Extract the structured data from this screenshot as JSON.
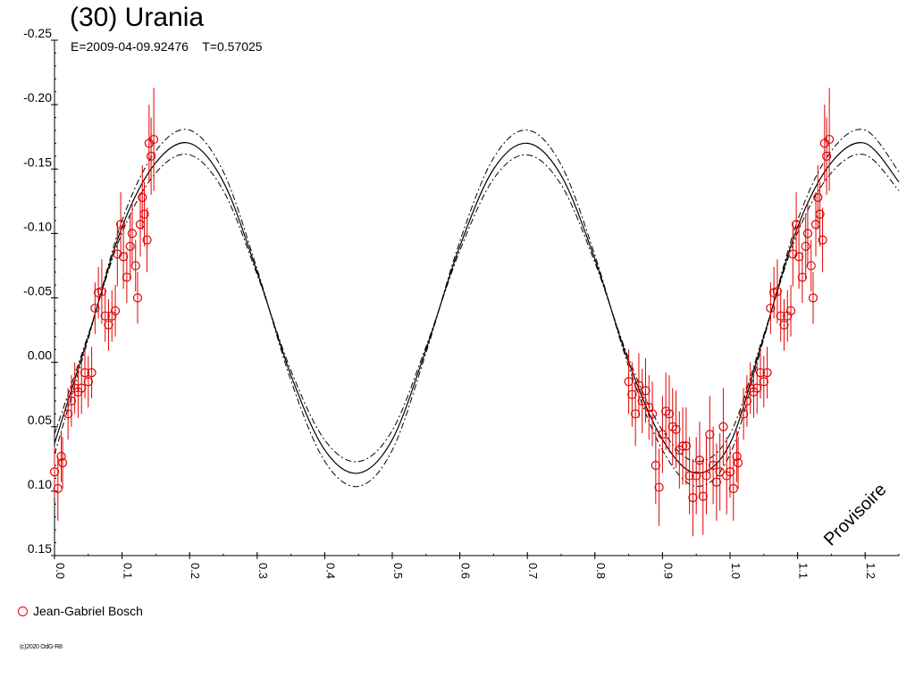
{
  "header": {
    "title": "(30) Urania",
    "subtitle": "E=2009-04-09.92476    T=0.57025"
  },
  "legend": {
    "observer": "Jean-Gabriel Bosch",
    "marker_color": "#e00000"
  },
  "footer": {
    "copyright": "(c)2020 OdG-R8"
  },
  "watermark": "Provisoire",
  "chart_data": {
    "type": "scatter",
    "xlim": [
      0.0,
      1.25
    ],
    "ylim": [
      -0.25,
      0.15
    ],
    "y_inverted": true,
    "x_ticks": [
      "0.0",
      "0.1",
      "0.2",
      "0.3",
      "0.4",
      "0.5",
      "0.6",
      "0.7",
      "0.8",
      "0.9",
      "1.0",
      "1.1",
      "1.2"
    ],
    "y_ticks": [
      "-0.25",
      "-0.20",
      "-0.15",
      "-0.10",
      "-0.05",
      "0.00",
      "0.05",
      "0.10",
      "0.15"
    ],
    "grid": false,
    "legend_placement": "bottom-left",
    "fit_curve": {
      "style": "solid",
      "points": [
        [
          0.0,
          0.063
        ],
        [
          0.05,
          -0.02
        ],
        [
          0.1,
          -0.105
        ],
        [
          0.15,
          -0.155
        ],
        [
          0.2,
          -0.17
        ],
        [
          0.25,
          -0.14
        ],
        [
          0.3,
          -0.07
        ],
        [
          0.35,
          0.01
        ],
        [
          0.4,
          0.068
        ],
        [
          0.45,
          0.086
        ],
        [
          0.5,
          0.06
        ],
        [
          0.55,
          -0.01
        ],
        [
          0.6,
          -0.09
        ],
        [
          0.65,
          -0.15
        ],
        [
          0.7,
          -0.17
        ],
        [
          0.75,
          -0.145
        ],
        [
          0.8,
          -0.08
        ],
        [
          0.85,
          0.0
        ],
        [
          0.9,
          0.06
        ],
        [
          0.95,
          0.086
        ],
        [
          1.0,
          0.063
        ],
        [
          1.05,
          -0.02
        ],
        [
          1.1,
          -0.105
        ],
        [
          1.15,
          -0.155
        ],
        [
          1.2,
          -0.17
        ],
        [
          1.25,
          -0.14
        ]
      ]
    },
    "envelope_offset": 0.01,
    "series": [
      {
        "name": "Jean-Gabriel Bosch",
        "color": "#e00000",
        "points": [
          {
            "x": 0.0,
            "y": 0.085,
            "err": 0.02
          },
          {
            "x": 0.005,
            "y": 0.098,
            "err": 0.025
          },
          {
            "x": 0.01,
            "y": 0.073,
            "err": 0.02
          },
          {
            "x": 0.012,
            "y": 0.078,
            "err": 0.02
          },
          {
            "x": 0.02,
            "y": 0.04,
            "err": 0.02
          },
          {
            "x": 0.025,
            "y": 0.03,
            "err": 0.02
          },
          {
            "x": 0.03,
            "y": 0.02,
            "err": 0.02
          },
          {
            "x": 0.035,
            "y": 0.023,
            "err": 0.02
          },
          {
            "x": 0.04,
            "y": 0.02,
            "err": 0.02
          },
          {
            "x": 0.045,
            "y": 0.008,
            "err": 0.02
          },
          {
            "x": 0.05,
            "y": 0.015,
            "err": 0.02
          },
          {
            "x": 0.055,
            "y": 0.008,
            "err": 0.02
          },
          {
            "x": 0.06,
            "y": -0.042,
            "err": 0.02
          },
          {
            "x": 0.065,
            "y": -0.054,
            "err": 0.02
          },
          {
            "x": 0.07,
            "y": -0.055,
            "err": 0.025
          },
          {
            "x": 0.075,
            "y": -0.036,
            "err": 0.02
          },
          {
            "x": 0.08,
            "y": -0.029,
            "err": 0.02
          },
          {
            "x": 0.085,
            "y": -0.036,
            "err": 0.02
          },
          {
            "x": 0.09,
            "y": -0.04,
            "err": 0.02
          },
          {
            "x": 0.093,
            "y": -0.084,
            "err": 0.025
          },
          {
            "x": 0.098,
            "y": -0.107,
            "err": 0.025
          },
          {
            "x": 0.102,
            "y": -0.082,
            "err": 0.025
          },
          {
            "x": 0.107,
            "y": -0.066,
            "err": 0.02
          },
          {
            "x": 0.112,
            "y": -0.09,
            "err": 0.025
          },
          {
            "x": 0.115,
            "y": -0.1,
            "err": 0.025
          },
          {
            "x": 0.12,
            "y": -0.075,
            "err": 0.02
          },
          {
            "x": 0.123,
            "y": -0.05,
            "err": 0.02
          },
          {
            "x": 0.127,
            "y": -0.107,
            "err": 0.025
          },
          {
            "x": 0.13,
            "y": -0.128,
            "err": 0.025
          },
          {
            "x": 0.133,
            "y": -0.115,
            "err": 0.025
          },
          {
            "x": 0.137,
            "y": -0.095,
            "err": 0.025
          },
          {
            "x": 0.14,
            "y": -0.17,
            "err": 0.03
          },
          {
            "x": 0.143,
            "y": -0.16,
            "err": 0.03
          },
          {
            "x": 0.147,
            "y": -0.173,
            "err": 0.04
          },
          {
            "x": 0.85,
            "y": 0.015,
            "err": 0.025
          },
          {
            "x": 0.855,
            "y": 0.025,
            "err": 0.025
          },
          {
            "x": 0.86,
            "y": 0.04,
            "err": 0.025
          },
          {
            "x": 0.865,
            "y": 0.018,
            "err": 0.025
          },
          {
            "x": 0.87,
            "y": 0.03,
            "err": 0.025
          },
          {
            "x": 0.875,
            "y": 0.022,
            "err": 0.025
          },
          {
            "x": 0.88,
            "y": 0.035,
            "err": 0.025
          },
          {
            "x": 0.885,
            "y": 0.04,
            "err": 0.025
          },
          {
            "x": 0.89,
            "y": 0.08,
            "err": 0.03
          },
          {
            "x": 0.895,
            "y": 0.097,
            "err": 0.03
          },
          {
            "x": 0.9,
            "y": 0.056,
            "err": 0.03
          },
          {
            "x": 0.905,
            "y": 0.038,
            "err": 0.03
          },
          {
            "x": 0.91,
            "y": 0.04,
            "err": 0.03
          },
          {
            "x": 0.915,
            "y": 0.05,
            "err": 0.03
          },
          {
            "x": 0.92,
            "y": 0.052,
            "err": 0.03
          },
          {
            "x": 0.925,
            "y": 0.068,
            "err": 0.03
          },
          {
            "x": 0.93,
            "y": 0.065,
            "err": 0.03
          },
          {
            "x": 0.935,
            "y": 0.065,
            "err": 0.03
          },
          {
            "x": 0.94,
            "y": 0.088,
            "err": 0.03
          },
          {
            "x": 0.945,
            "y": 0.105,
            "err": 0.03
          },
          {
            "x": 0.95,
            "y": 0.088,
            "err": 0.03
          },
          {
            "x": 0.955,
            "y": 0.076,
            "err": 0.03
          },
          {
            "x": 0.96,
            "y": 0.104,
            "err": 0.03
          },
          {
            "x": 0.965,
            "y": 0.088,
            "err": 0.03
          },
          {
            "x": 0.97,
            "y": 0.056,
            "err": 0.03
          },
          {
            "x": 0.975,
            "y": 0.08,
            "err": 0.03
          },
          {
            "x": 0.98,
            "y": 0.093,
            "err": 0.03
          },
          {
            "x": 0.985,
            "y": 0.085,
            "err": 0.03
          },
          {
            "x": 0.99,
            "y": 0.05,
            "err": 0.03
          },
          {
            "x": 0.995,
            "y": 0.088,
            "err": 0.03
          },
          {
            "x": 1.0,
            "y": 0.085,
            "err": 0.02
          },
          {
            "x": 1.005,
            "y": 0.098,
            "err": 0.025
          },
          {
            "x": 1.01,
            "y": 0.073,
            "err": 0.02
          },
          {
            "x": 1.012,
            "y": 0.078,
            "err": 0.02
          },
          {
            "x": 1.02,
            "y": 0.04,
            "err": 0.02
          },
          {
            "x": 1.025,
            "y": 0.03,
            "err": 0.02
          },
          {
            "x": 1.03,
            "y": 0.02,
            "err": 0.02
          },
          {
            "x": 1.035,
            "y": 0.023,
            "err": 0.02
          },
          {
            "x": 1.04,
            "y": 0.02,
            "err": 0.02
          },
          {
            "x": 1.045,
            "y": 0.008,
            "err": 0.02
          },
          {
            "x": 1.05,
            "y": 0.015,
            "err": 0.02
          },
          {
            "x": 1.055,
            "y": 0.008,
            "err": 0.02
          },
          {
            "x": 1.06,
            "y": -0.042,
            "err": 0.02
          },
          {
            "x": 1.065,
            "y": -0.054,
            "err": 0.02
          },
          {
            "x": 1.07,
            "y": -0.055,
            "err": 0.025
          },
          {
            "x": 1.075,
            "y": -0.036,
            "err": 0.02
          },
          {
            "x": 1.08,
            "y": -0.029,
            "err": 0.02
          },
          {
            "x": 1.085,
            "y": -0.036,
            "err": 0.02
          },
          {
            "x": 1.09,
            "y": -0.04,
            "err": 0.02
          },
          {
            "x": 1.093,
            "y": -0.084,
            "err": 0.025
          },
          {
            "x": 1.098,
            "y": -0.107,
            "err": 0.025
          },
          {
            "x": 1.102,
            "y": -0.082,
            "err": 0.025
          },
          {
            "x": 1.107,
            "y": -0.066,
            "err": 0.02
          },
          {
            "x": 1.112,
            "y": -0.09,
            "err": 0.025
          },
          {
            "x": 1.115,
            "y": -0.1,
            "err": 0.025
          },
          {
            "x": 1.12,
            "y": -0.075,
            "err": 0.02
          },
          {
            "x": 1.123,
            "y": -0.05,
            "err": 0.02
          },
          {
            "x": 1.127,
            "y": -0.107,
            "err": 0.025
          },
          {
            "x": 1.13,
            "y": -0.128,
            "err": 0.025
          },
          {
            "x": 1.133,
            "y": -0.115,
            "err": 0.025
          },
          {
            "x": 1.137,
            "y": -0.095,
            "err": 0.025
          },
          {
            "x": 1.14,
            "y": -0.17,
            "err": 0.03
          },
          {
            "x": 1.143,
            "y": -0.16,
            "err": 0.03
          },
          {
            "x": 1.147,
            "y": -0.173,
            "err": 0.04
          }
        ]
      }
    ]
  }
}
